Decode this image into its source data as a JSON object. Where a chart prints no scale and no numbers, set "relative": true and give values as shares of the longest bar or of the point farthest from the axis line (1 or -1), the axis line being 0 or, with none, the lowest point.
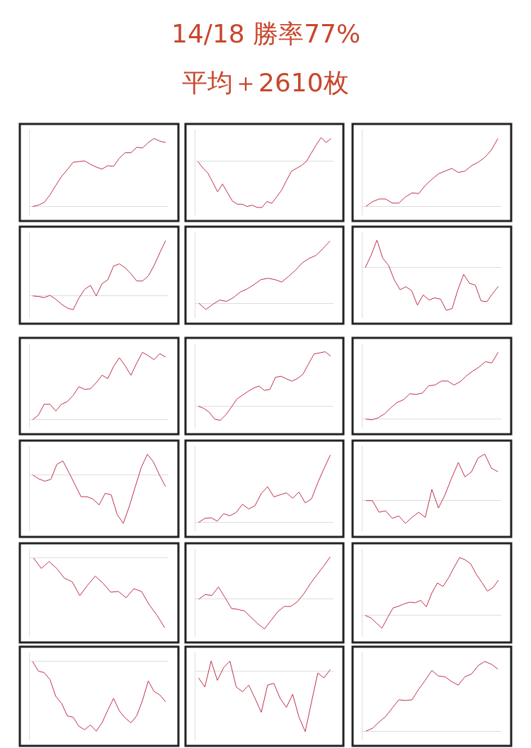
{
  "chart_data": [
    {
      "type": "other",
      "title": "14/18 勝率77%",
      "subtitle": "平均＋2610枚"
    },
    {
      "type": "line",
      "relative": true,
      "categories": [
        null,
        null,
        null,
        null,
        null,
        null,
        null,
        null,
        null,
        null,
        null,
        null,
        null,
        null,
        null,
        null,
        null,
        null,
        null,
        null,
        null,
        null,
        null,
        null
      ],
      "series": [
        {
          "color": "#c0304a",
          "values": [
            0,
            0.02,
            0.06,
            0.17,
            0.31,
            0.44,
            0.54,
            0.65,
            0.66,
            0.67,
            0.62,
            0.58,
            0.55,
            0.6,
            0.59,
            0.71,
            0.79,
            0.79,
            0.87,
            0.86,
            0.94,
            1,
            0.96,
            0.94
          ]
        }
      ]
    },
    {
      "type": "line",
      "relative": true,
      "categories": [
        null,
        null,
        null,
        null,
        null,
        null,
        null,
        null,
        null,
        null,
        null,
        null,
        null,
        null,
        null,
        null,
        null,
        null,
        null,
        null,
        null,
        null,
        null,
        null,
        null,
        null,
        null,
        null
      ],
      "series": [
        {
          "color": "#c0304a",
          "values": [
            0,
            -0.14,
            -0.25,
            -0.45,
            -0.66,
            -0.49,
            -0.68,
            -0.86,
            -0.93,
            -0.93,
            -0.98,
            -0.95,
            -1,
            -1,
            -0.87,
            -0.91,
            -0.77,
            -0.62,
            -0.41,
            -0.21,
            -0.15,
            -0.09,
            0,
            0.18,
            0.36,
            0.52,
            0.41,
            0.5
          ]
        }
      ]
    },
    {
      "type": "line",
      "relative": true,
      "categories": [
        null,
        null,
        null,
        null,
        null,
        null,
        null,
        null,
        null,
        null,
        null,
        null,
        null,
        null,
        null,
        null,
        null,
        null,
        null,
        null,
        null
      ],
      "series": [
        {
          "color": "#c0304a",
          "values": [
            0,
            0.07,
            0.11,
            0.11,
            0.05,
            0.05,
            0.14,
            0.2,
            0.19,
            0.31,
            0.4,
            0.48,
            0.52,
            0.56,
            0.5,
            0.52,
            0.6,
            0.65,
            0.72,
            0.83,
            1
          ]
        }
      ]
    },
    {
      "type": "line",
      "relative": true,
      "categories": [
        null,
        null,
        null,
        null,
        null,
        null,
        null,
        null,
        null,
        null,
        null,
        null,
        null,
        null,
        null,
        null,
        null,
        null,
        null,
        null,
        null,
        null,
        null,
        null
      ],
      "series": [
        {
          "color": "#c0304a",
          "values": [
            0,
            -0.01,
            -0.03,
            0.01,
            -0.06,
            -0.15,
            -0.22,
            -0.25,
            -0.04,
            0.12,
            0.19,
            0,
            0.22,
            0.29,
            0.54,
            0.58,
            0.51,
            0.4,
            0.27,
            0.27,
            0.36,
            0.55,
            0.78,
            1
          ]
        }
      ]
    },
    {
      "type": "line",
      "relative": true,
      "categories": [
        null,
        null,
        null,
        null,
        null,
        null,
        null,
        null,
        null,
        null,
        null,
        null,
        null,
        null,
        null,
        null,
        null,
        null,
        null,
        null
      ],
      "series": [
        {
          "color": "#c0304a",
          "values": [
            0,
            -0.1,
            -0.02,
            0.05,
            0.03,
            0.09,
            0.18,
            0.23,
            0.3,
            0.38,
            0.4,
            0.38,
            0.34,
            0.43,
            0.53,
            0.65,
            0.72,
            0.77,
            0.88,
            1
          ]
        }
      ]
    },
    {
      "type": "line",
      "relative": true,
      "categories": [
        null,
        null,
        null,
        null,
        null,
        null,
        null,
        null,
        null,
        null,
        null,
        null,
        null,
        null,
        null,
        null,
        null,
        null,
        null,
        null,
        null,
        null,
        null,
        null
      ],
      "series": [
        {
          "color": "#c0304a",
          "values": [
            0,
            0.29,
            0.64,
            0.22,
            0.05,
            -0.29,
            -0.52,
            -0.45,
            -0.54,
            -0.88,
            -0.64,
            -0.76,
            -0.71,
            -0.74,
            -1,
            -0.96,
            -0.52,
            -0.16,
            -0.37,
            -0.41,
            -0.78,
            -0.8,
            -0.61,
            -0.44
          ]
        }
      ]
    },
    {
      "type": "line",
      "relative": true,
      "categories": [
        null,
        null,
        null,
        null,
        null,
        null,
        null,
        null,
        null,
        null,
        null,
        null,
        null,
        null,
        null,
        null,
        null,
        null,
        null,
        null,
        null,
        null,
        null,
        null
      ],
      "series": [
        {
          "color": "#c0304a",
          "values": [
            0,
            0.07,
            0.23,
            0.23,
            0.13,
            0.23,
            0.27,
            0.36,
            0.49,
            0.45,
            0.46,
            0.55,
            0.66,
            0.61,
            0.79,
            0.92,
            0.8,
            0.66,
            0.84,
            1,
            0.95,
            0.89,
            0.98,
            0.93
          ]
        }
      ]
    },
    {
      "type": "line",
      "relative": true,
      "categories": [
        null,
        null,
        null,
        null,
        null,
        null,
        null,
        null,
        null,
        null,
        null,
        null,
        null,
        null,
        null,
        null,
        null,
        null,
        null,
        null,
        null,
        null,
        null,
        null,
        null
      ],
      "series": [
        {
          "color": "#c0304a",
          "values": [
            0,
            -0.04,
            -0.11,
            -0.24,
            -0.26,
            -0.16,
            -0.02,
            0.13,
            0.2,
            0.27,
            0.33,
            0.37,
            0.29,
            0.31,
            0.53,
            0.55,
            0.5,
            0.46,
            0.51,
            0.59,
            0.78,
            0.96,
            0.98,
            1,
            0.92
          ]
        }
      ]
    },
    {
      "type": "line",
      "relative": true,
      "categories": [
        null,
        null,
        null,
        null,
        null,
        null,
        null,
        null,
        null,
        null,
        null,
        null,
        null,
        null,
        null,
        null,
        null,
        null,
        null,
        null,
        null,
        null
      ],
      "series": [
        {
          "color": "#c0304a",
          "values": [
            0,
            -0.01,
            0.02,
            0.08,
            0.17,
            0.25,
            0.29,
            0.38,
            0.37,
            0.39,
            0.5,
            0.51,
            0.57,
            0.57,
            0.51,
            0.56,
            0.65,
            0.72,
            0.78,
            0.86,
            0.84,
            1
          ]
        }
      ]
    },
    {
      "type": "line",
      "relative": true,
      "categories": [
        null,
        null,
        null,
        null,
        null,
        null,
        null,
        null,
        null,
        null,
        null,
        null,
        null,
        null,
        null,
        null,
        null,
        null,
        null,
        null,
        null,
        null,
        null
      ],
      "series": [
        {
          "color": "#c0304a",
          "values": [
            0,
            -0.08,
            -0.13,
            -0.09,
            0.22,
            0.29,
            0.05,
            -0.2,
            -0.45,
            -0.45,
            -0.5,
            -0.62,
            -0.38,
            -0.41,
            -0.82,
            -1,
            -0.65,
            -0.24,
            0.16,
            0.43,
            0.27,
            0,
            -0.24
          ]
        }
      ]
    },
    {
      "type": "line",
      "relative": true,
      "categories": [
        null,
        null,
        null,
        null,
        null,
        null,
        null,
        null,
        null,
        null,
        null,
        null,
        null,
        null,
        null,
        null,
        null,
        null,
        null,
        null,
        null,
        null
      ],
      "series": [
        {
          "color": "#c0304a",
          "values": [
            0,
            0.06,
            0.07,
            0.02,
            0.13,
            0.1,
            0.15,
            0.27,
            0.2,
            0.25,
            0.43,
            0.53,
            0.38,
            0.41,
            0.44,
            0.36,
            0.45,
            0.29,
            0.35,
            0.59,
            0.8,
            1
          ]
        }
      ]
    },
    {
      "type": "line",
      "relative": true,
      "categories": [
        null,
        null,
        null,
        null,
        null,
        null,
        null,
        null,
        null,
        null,
        null,
        null,
        null,
        null,
        null,
        null,
        null,
        null,
        null,
        null,
        null
      ],
      "series": [
        {
          "color": "#c0304a",
          "values": [
            0,
            0,
            -0.25,
            -0.22,
            -0.38,
            -0.33,
            -0.49,
            -0.36,
            -0.25,
            -0.36,
            0.24,
            -0.16,
            0.13,
            0.49,
            0.82,
            0.51,
            0.62,
            0.92,
            1,
            0.7,
            0.62
          ]
        }
      ]
    },
    {
      "type": "line",
      "relative": true,
      "categories": [
        null,
        null,
        null,
        null,
        null,
        null,
        null,
        null,
        null,
        null,
        null,
        null,
        null,
        null,
        null,
        null,
        null,
        null
      ],
      "series": [
        {
          "color": "#c0304a",
          "values": [
            0,
            -0.15,
            -0.05,
            -0.15,
            -0.29,
            -0.34,
            -0.54,
            -0.39,
            -0.26,
            -0.36,
            -0.49,
            -0.48,
            -0.57,
            -0.44,
            -0.48,
            -0.67,
            -0.82,
            -1
          ]
        }
      ]
    },
    {
      "type": "line",
      "relative": true,
      "categories": [
        null,
        null,
        null,
        null,
        null,
        null,
        null,
        null,
        null,
        null,
        null,
        null,
        null,
        null,
        null,
        null,
        null,
        null,
        null,
        null,
        null
      ],
      "series": [
        {
          "color": "#c0304a",
          "values": [
            0,
            0.11,
            0.09,
            0.29,
            0.04,
            -0.22,
            -0.24,
            -0.28,
            -0.43,
            -0.58,
            -0.7,
            -0.5,
            -0.3,
            -0.17,
            -0.17,
            -0.06,
            0.13,
            0.37,
            0.58,
            0.78,
            1
          ]
        }
      ]
    },
    {
      "type": "line",
      "relative": true,
      "categories": [
        null,
        null,
        null,
        null,
        null,
        null,
        null,
        null,
        null,
        null,
        null,
        null,
        null,
        null,
        null,
        null,
        null,
        null,
        null,
        null,
        null,
        null,
        null,
        null,
        null
      ],
      "series": [
        {
          "color": "#c0304a",
          "values": [
            0,
            -0.04,
            -0.13,
            -0.22,
            -0.04,
            0.13,
            0.16,
            0.2,
            0.23,
            0.22,
            0.26,
            0.15,
            0.39,
            0.56,
            0.5,
            0.65,
            0.83,
            1,
            0.96,
            0.89,
            0.71,
            0.57,
            0.42,
            0.48,
            0.61
          ]
        }
      ]
    },
    {
      "type": "line",
      "relative": true,
      "categories": [
        null,
        null,
        null,
        null,
        null,
        null,
        null,
        null,
        null,
        null,
        null,
        null,
        null,
        null,
        null,
        null,
        null,
        null,
        null,
        null,
        null,
        null,
        null,
        null
      ],
      "series": [
        {
          "color": "#c0304a",
          "values": [
            0,
            -0.14,
            -0.16,
            -0.26,
            -0.5,
            -0.6,
            -0.78,
            -0.8,
            -0.93,
            -0.98,
            -0.91,
            -1,
            -0.88,
            -0.7,
            -0.53,
            -0.71,
            -0.81,
            -0.88,
            -0.78,
            -0.56,
            -0.28,
            -0.43,
            -0.48,
            -0.58
          ]
        }
      ]
    },
    {
      "type": "line",
      "relative": true,
      "categories": [
        null,
        null,
        null,
        null,
        null,
        null,
        null,
        null,
        null,
        null,
        null,
        null,
        null,
        null,
        null,
        null,
        null,
        null,
        null,
        null,
        null,
        null
      ],
      "series": [
        {
          "color": "#c0304a",
          "values": [
            -0.11,
            -0.26,
            0.17,
            -0.15,
            0.06,
            0.17,
            -0.26,
            -0.34,
            -0.23,
            -0.45,
            -0.68,
            -0.23,
            -0.2,
            -0.45,
            -0.6,
            -0.38,
            -0.76,
            -1,
            -0.51,
            -0.03,
            -0.11,
            0.03
          ]
        }
      ]
    },
    {
      "type": "line",
      "relative": true,
      "categories": [
        null,
        null,
        null,
        null,
        null,
        null,
        null,
        null,
        null,
        null,
        null,
        null,
        null,
        null,
        null,
        null,
        null,
        null,
        null,
        null,
        null
      ],
      "series": [
        {
          "color": "#c0304a",
          "values": [
            0,
            0.04,
            0.13,
            0.21,
            0.33,
            0.45,
            0.44,
            0.45,
            0.6,
            0.73,
            0.87,
            0.79,
            0.78,
            0.71,
            0.66,
            0.78,
            0.82,
            0.94,
            1,
            0.96,
            0.89
          ]
        }
      ]
    }
  ]
}
